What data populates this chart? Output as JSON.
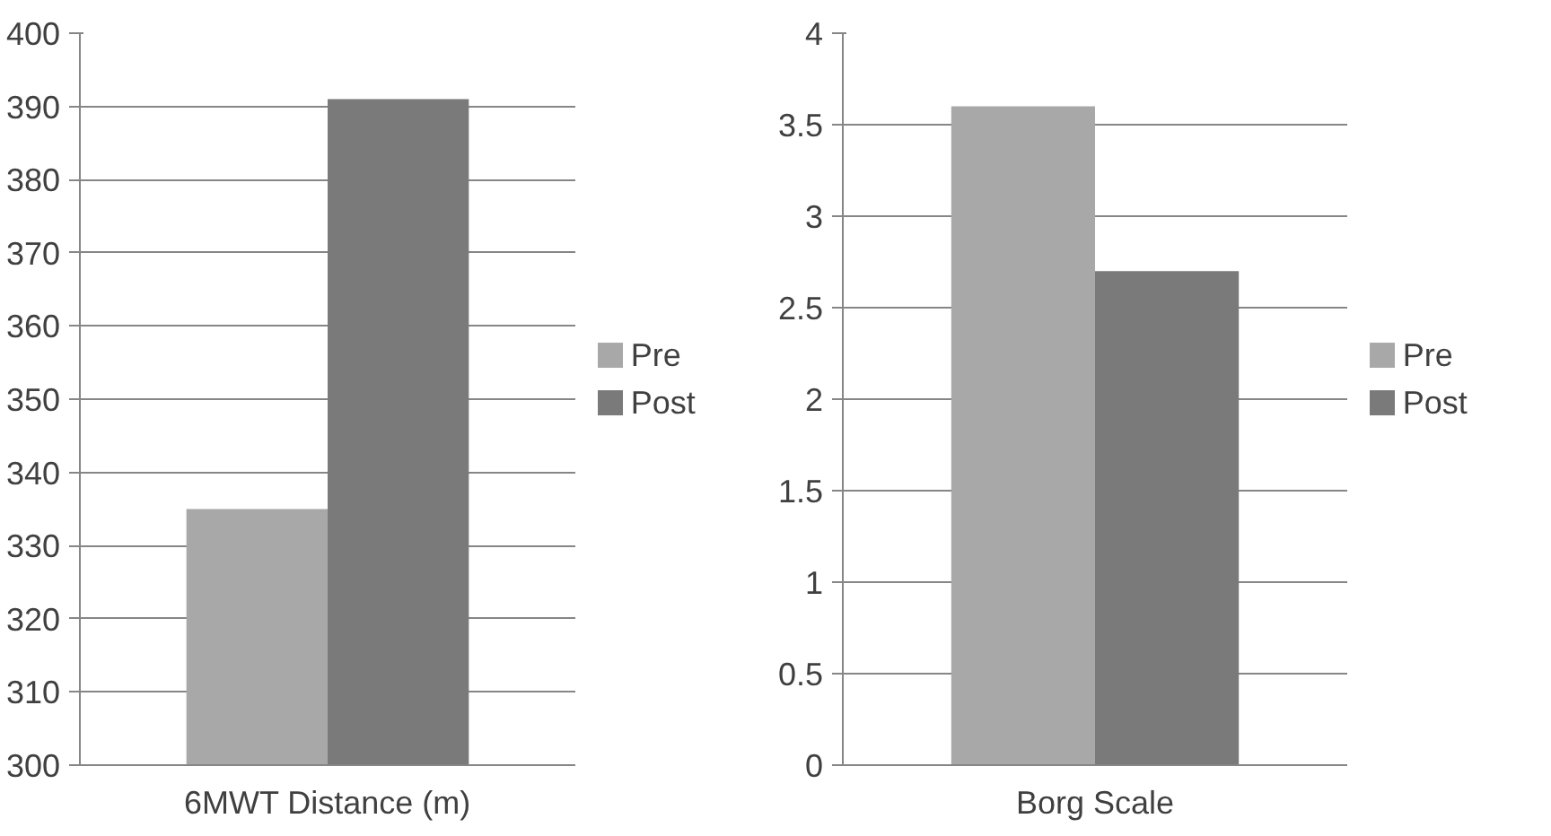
{
  "chart_data": [
    {
      "type": "bar",
      "categories": [
        "6MWT Distance (m)"
      ],
      "series": [
        {
          "name": "Pre",
          "color": "#a8a8a8",
          "values": [
            335
          ]
        },
        {
          "name": "Post",
          "color": "#7a7a7a",
          "values": [
            391
          ]
        }
      ],
      "ylim": [
        300,
        400
      ],
      "yticks": [
        300,
        310,
        320,
        330,
        340,
        350,
        360,
        370,
        380,
        390,
        400
      ],
      "grid": "y",
      "legend": "right"
    },
    {
      "type": "bar",
      "categories": [
        "Borg Scale"
      ],
      "series": [
        {
          "name": "Pre",
          "color": "#a8a8a8",
          "values": [
            3.6
          ]
        },
        {
          "name": "Post",
          "color": "#7a7a7a",
          "values": [
            2.7
          ]
        }
      ],
      "ylim": [
        0,
        4
      ],
      "yticks": [
        0,
        0.5,
        1,
        1.5,
        2,
        2.5,
        3,
        3.5,
        4
      ],
      "grid": "y",
      "legend": "right"
    }
  ]
}
